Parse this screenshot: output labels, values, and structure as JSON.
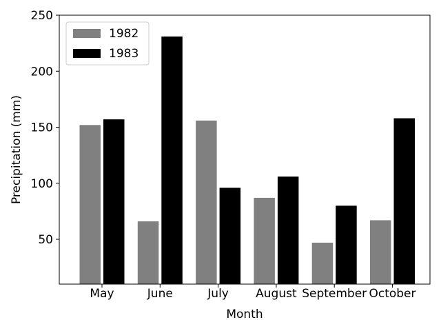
{
  "chart_data": {
    "type": "bar",
    "title": "",
    "xlabel": "Month",
    "ylabel": "Precipitation (mm)",
    "categories": [
      "May",
      "June",
      "July",
      "August",
      "September",
      "October"
    ],
    "series": [
      {
        "name": "1982",
        "color": "#808080",
        "values": [
          152,
          66,
          156,
          87,
          47,
          67
        ]
      },
      {
        "name": "1983",
        "color": "#000000",
        "values": [
          157,
          231,
          96,
          106,
          80,
          158
        ]
      }
    ],
    "ylim": [
      10,
      250
    ],
    "yticks": [
      50,
      100,
      150,
      200,
      250
    ],
    "grid": false,
    "legend_position": "top-left"
  }
}
